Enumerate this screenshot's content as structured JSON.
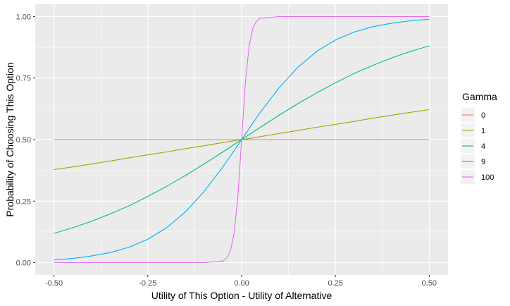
{
  "chart_data": {
    "type": "line",
    "xlabel": "Utility of This Option - Utility of Alternative",
    "ylabel": "Probability of Choosing This Option",
    "xlim": [
      -0.55,
      0.55
    ],
    "ylim": [
      -0.05,
      1.05
    ],
    "x_ticks": [
      -0.5,
      -0.25,
      0.0,
      0.25,
      0.5
    ],
    "x_tick_labels": [
      "-0.50",
      "-0.25",
      "0.00",
      "0.25",
      "0.50"
    ],
    "y_ticks": [
      0.0,
      0.25,
      0.5,
      0.75,
      1.0
    ],
    "y_tick_labels": [
      "0.00",
      "0.25",
      "0.50",
      "0.75",
      "1.00"
    ],
    "grid": true,
    "legend": {
      "title": "Gamma",
      "placement": "right"
    },
    "x": [
      -0.5,
      -0.45,
      -0.4,
      -0.35,
      -0.3,
      -0.25,
      -0.2,
      -0.15,
      -0.1,
      -0.05,
      -0.04,
      -0.03,
      -0.02,
      -0.01,
      0.0,
      0.01,
      0.02,
      0.03,
      0.04,
      0.05,
      0.1,
      0.15,
      0.2,
      0.25,
      0.3,
      0.35,
      0.4,
      0.45,
      0.5
    ],
    "series": [
      {
        "name": "0",
        "color": "#F8766D",
        "values": [
          0.5,
          0.5,
          0.5,
          0.5,
          0.5,
          0.5,
          0.5,
          0.5,
          0.5,
          0.5,
          0.5,
          0.5,
          0.5,
          0.5,
          0.5,
          0.5,
          0.5,
          0.5,
          0.5,
          0.5,
          0.5,
          0.5,
          0.5,
          0.5,
          0.5,
          0.5,
          0.5,
          0.5,
          0.5
        ]
      },
      {
        "name": "1",
        "color": "#A3A500",
        "values": [
          0.378,
          0.389,
          0.401,
          0.413,
          0.426,
          0.438,
          0.45,
          0.463,
          0.475,
          0.488,
          0.49,
          0.493,
          0.495,
          0.498,
          0.5,
          0.502,
          0.505,
          0.507,
          0.51,
          0.512,
          0.525,
          0.537,
          0.55,
          0.562,
          0.574,
          0.587,
          0.599,
          0.611,
          0.622
        ]
      },
      {
        "name": "4",
        "color": "#00BF7D",
        "values": [
          0.119,
          0.142,
          0.168,
          0.198,
          0.231,
          0.269,
          0.31,
          0.354,
          0.401,
          0.45,
          0.46,
          0.47,
          0.48,
          0.49,
          0.5,
          0.51,
          0.52,
          0.53,
          0.54,
          0.55,
          0.599,
          0.646,
          0.69,
          0.731,
          0.769,
          0.802,
          0.832,
          0.858,
          0.881
        ]
      },
      {
        "name": "9",
        "color": "#00B0F6",
        "values": [
          0.011,
          0.017,
          0.027,
          0.041,
          0.063,
          0.095,
          0.142,
          0.206,
          0.289,
          0.389,
          0.411,
          0.433,
          0.455,
          0.478,
          0.5,
          0.522,
          0.545,
          0.567,
          0.589,
          0.611,
          0.711,
          0.794,
          0.858,
          0.905,
          0.937,
          0.959,
          0.973,
          0.983,
          0.989
        ]
      },
      {
        "name": "100",
        "color": "#E76BF3",
        "values": [
          0.0,
          0.0,
          0.0,
          0.0,
          0.0,
          0.0,
          0.0,
          0.0,
          0.0,
          0.007,
          0.018,
          0.047,
          0.119,
          0.269,
          0.5,
          0.731,
          0.881,
          0.953,
          0.982,
          0.993,
          1.0,
          1.0,
          1.0,
          1.0,
          1.0,
          1.0,
          1.0,
          1.0,
          1.0
        ]
      }
    ]
  }
}
